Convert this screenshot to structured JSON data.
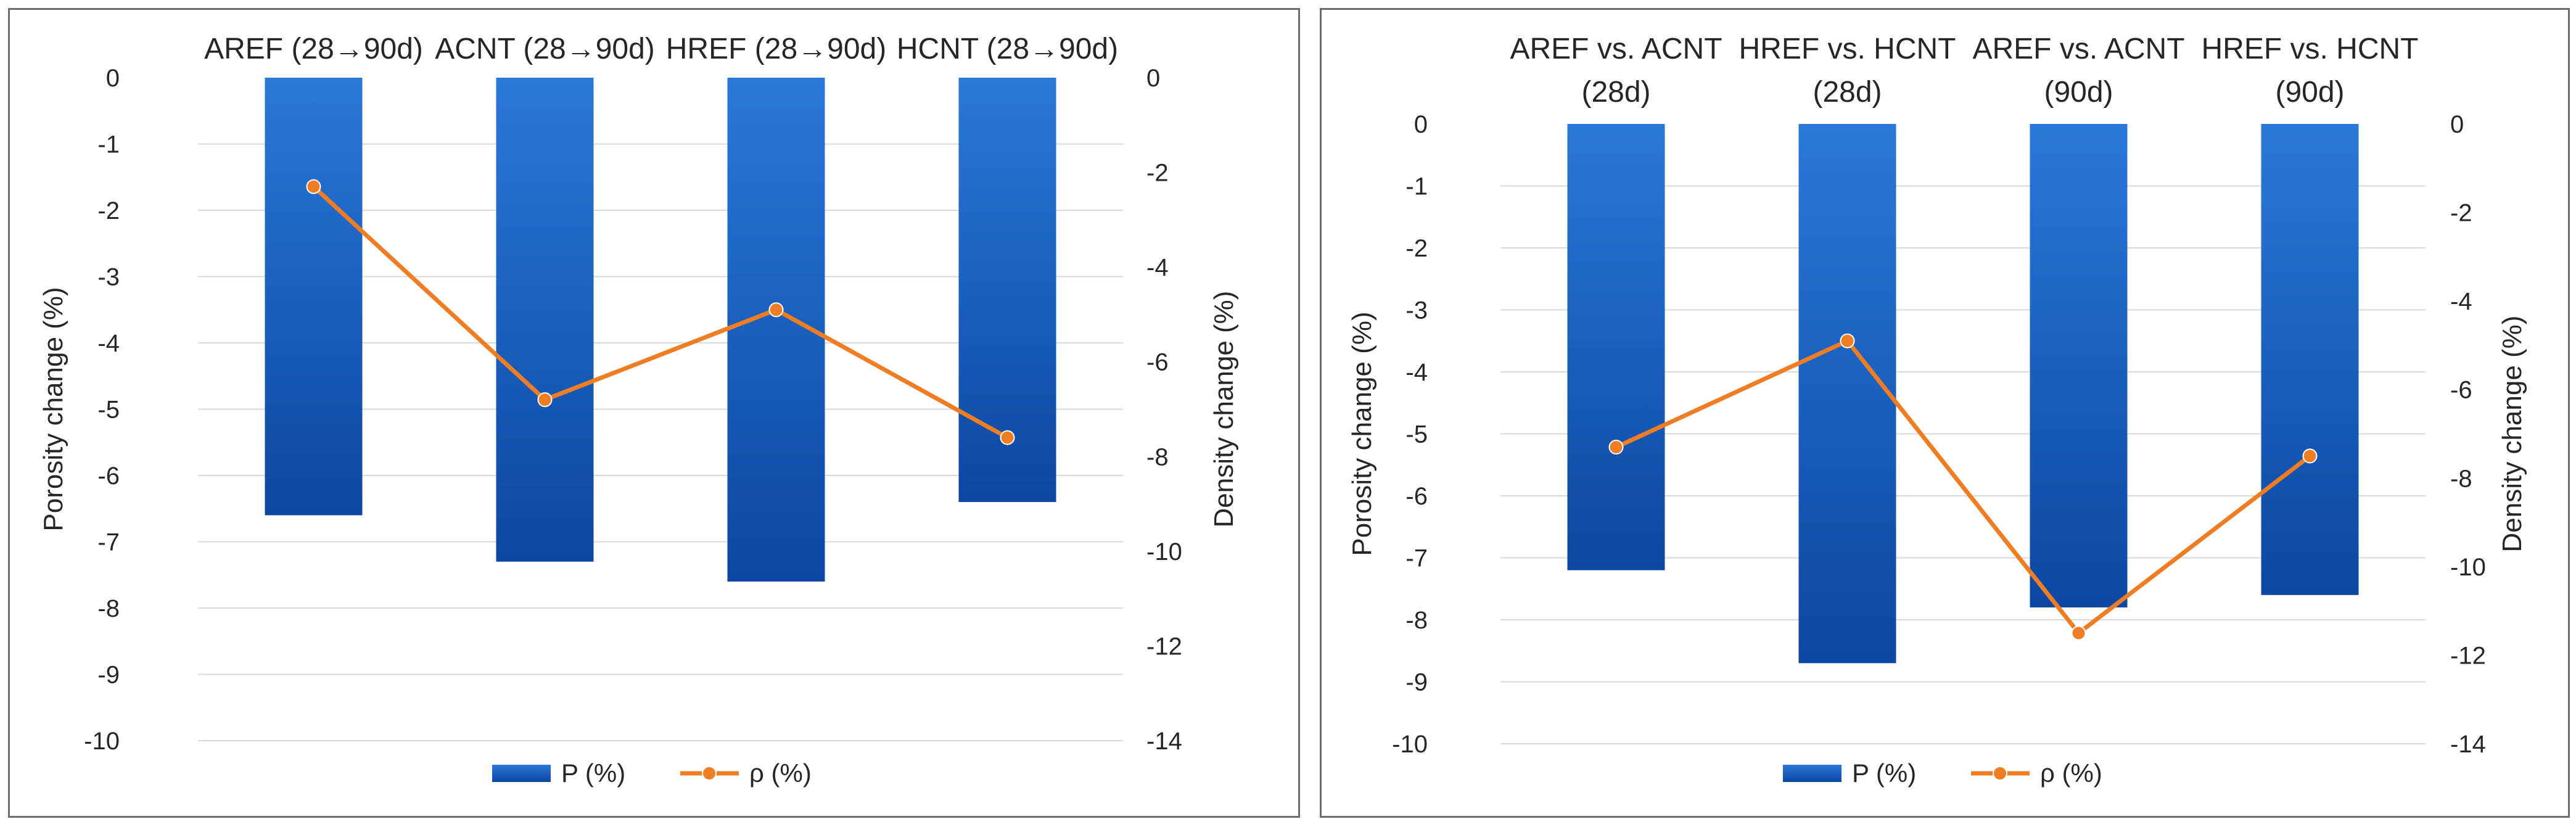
{
  "chart_data": [
    {
      "type": "bar",
      "categories": [
        [
          "AREF (28→90d)"
        ],
        [
          "ACNT (28→90d)"
        ],
        [
          "HREF (28→90d)"
        ],
        [
          "HCNT (28→90d)"
        ]
      ],
      "series": [
        {
          "name": "P (%)",
          "type": "bar",
          "axis": "left",
          "values": [
            -6.6,
            -7.3,
            -7.6,
            -6.4
          ]
        },
        {
          "name": "ρ (%)",
          "type": "line",
          "axis": "right",
          "values": [
            -2.3,
            -6.8,
            -4.9,
            -7.6
          ]
        }
      ],
      "ylabel": "Porosity change (%)",
      "y2label": "Density change (%)",
      "ylim": [
        -10,
        0
      ],
      "y2lim": [
        -14,
        0
      ],
      "yticks": [
        "0",
        "-1",
        "-2",
        "-3",
        "-4",
        "-5",
        "-6",
        "-7",
        "-8",
        "-9",
        "-10"
      ],
      "y2ticks": [
        "0",
        "-2",
        "-4",
        "-6",
        "-8",
        "-10",
        "-12",
        "-14"
      ],
      "grid": true,
      "legend": "bottom"
    },
    {
      "type": "bar",
      "categories": [
        [
          "AREF vs. ACNT",
          "(28d)"
        ],
        [
          "HREF vs. HCNT",
          "(28d)"
        ],
        [
          "AREF vs. ACNT",
          "(90d)"
        ],
        [
          "HREF vs. HCNT",
          "(90d)"
        ]
      ],
      "series": [
        {
          "name": "P (%)",
          "type": "bar",
          "axis": "left",
          "values": [
            -7.2,
            -8.7,
            -7.8,
            -7.6
          ]
        },
        {
          "name": "ρ (%)",
          "type": "line",
          "axis": "right",
          "values": [
            -7.3,
            -4.9,
            -11.5,
            -7.5
          ]
        }
      ],
      "ylabel": "Porosity change (%)",
      "y2label": "Density change (%)",
      "ylim": [
        -10,
        0
      ],
      "y2lim": [
        -14,
        0
      ],
      "yticks": [
        "0",
        "-1",
        "-2",
        "-3",
        "-4",
        "-5",
        "-6",
        "-7",
        "-8",
        "-9",
        "-10"
      ],
      "y2ticks": [
        "0",
        "-2",
        "-4",
        "-6",
        "-8",
        "-10",
        "-12",
        "-14"
      ],
      "grid": true,
      "legend": "bottom"
    }
  ],
  "colors": {
    "bar_top": "#2a78d8",
    "bar_bottom": "#0b47a3",
    "line": "#ee7d24",
    "grid": "#d9d9d9"
  }
}
